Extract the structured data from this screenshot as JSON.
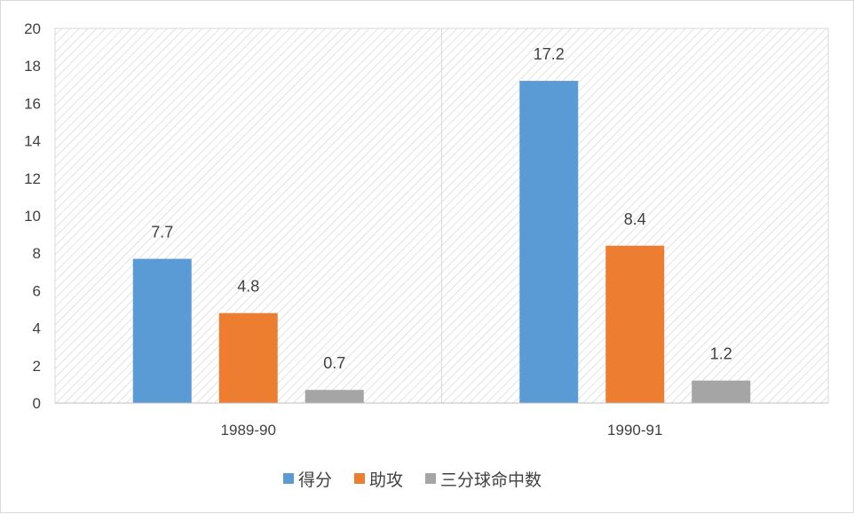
{
  "chart_data": {
    "type": "bar",
    "categories": [
      "1989-90",
      "1990-91"
    ],
    "series": [
      {
        "name": "得分",
        "values": [
          7.7,
          17.2
        ],
        "color": "#5b9bd5"
      },
      {
        "name": "助攻",
        "values": [
          4.8,
          8.4
        ],
        "color": "#ed7d31"
      },
      {
        "name": "三分球命中数",
        "values": [
          0.7,
          1.2
        ],
        "color": "#a5a5a5"
      }
    ],
    "data_labels": [
      [
        "7.7",
        "17.2"
      ],
      [
        "4.8",
        "8.4"
      ],
      [
        "0.7",
        "1.2"
      ]
    ],
    "title": "",
    "xlabel": "",
    "ylabel": "",
    "ylim": [
      0,
      20
    ],
    "yticks": [
      "0",
      "2",
      "4",
      "6",
      "8",
      "10",
      "12",
      "14",
      "16",
      "18",
      "20"
    ],
    "grid": "hatched plot area with vertical category divider",
    "legend_position": "bottom"
  }
}
